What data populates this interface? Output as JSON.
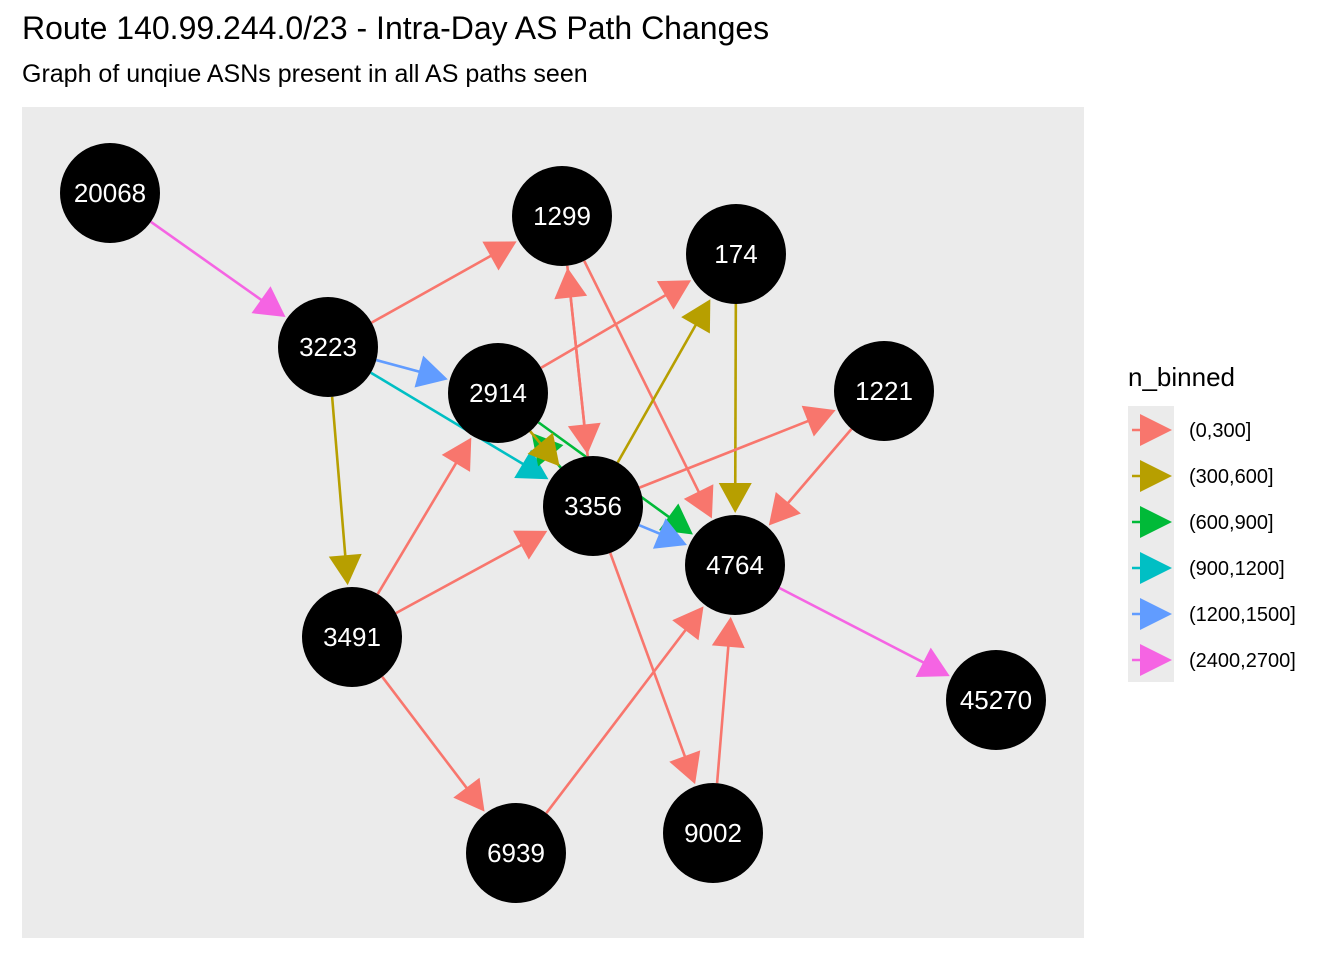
{
  "title": "Route 140.99.244.0/23 - Intra-Day AS Path Changes",
  "subtitle": "Graph of unqiue ASNs present in all AS paths seen",
  "legend": {
    "title": "n_binned",
    "bins": [
      {
        "label": "(0,300]",
        "color": "#F8766D"
      },
      {
        "label": "(300,600]",
        "color": "#B79F00"
      },
      {
        "label": "(600,900]",
        "color": "#00BA38"
      },
      {
        "label": "(900,1200]",
        "color": "#00BFC4"
      },
      {
        "label": "(1200,1500]",
        "color": "#619CFF"
      },
      {
        "label": "(2400,2700]",
        "color": "#F564E3"
      }
    ]
  },
  "nodes": [
    "20068",
    "1299",
    "174",
    "3223",
    "2914",
    "1221",
    "3356",
    "4764",
    "3491",
    "45270",
    "6939",
    "9002"
  ],
  "edges": [
    {
      "from": "20068",
      "to": "3223",
      "bin": 5
    },
    {
      "from": "3223",
      "to": "1299",
      "bin": 0
    },
    {
      "from": "3223",
      "to": "2914",
      "bin": 4
    },
    {
      "from": "3223",
      "to": "3356",
      "bin": 3
    },
    {
      "from": "3223",
      "to": "3491",
      "bin": 1
    },
    {
      "from": "2914",
      "to": "174",
      "bin": 0
    },
    {
      "from": "2914",
      "to": "4764",
      "bin": 2
    },
    {
      "from": "3356",
      "to": "2914",
      "bin": 2
    },
    {
      "from": "2914",
      "to": "3356",
      "bin": 1
    },
    {
      "from": "3356",
      "to": "1299",
      "bin": 0
    },
    {
      "from": "1299",
      "to": "3356",
      "bin": 0
    },
    {
      "from": "1299",
      "to": "4764",
      "bin": 0
    },
    {
      "from": "3356",
      "to": "174",
      "bin": 1
    },
    {
      "from": "174",
      "to": "4764",
      "bin": 1
    },
    {
      "from": "3356",
      "to": "1221",
      "bin": 0
    },
    {
      "from": "1221",
      "to": "4764",
      "bin": 0
    },
    {
      "from": "3356",
      "to": "4764",
      "bin": 4
    },
    {
      "from": "3356",
      "to": "9002",
      "bin": 0
    },
    {
      "from": "3491",
      "to": "2914",
      "bin": 0
    },
    {
      "from": "3491",
      "to": "3356",
      "bin": 0
    },
    {
      "from": "3491",
      "to": "6939",
      "bin": 0
    },
    {
      "from": "6939",
      "to": "4764",
      "bin": 0
    },
    {
      "from": "9002",
      "to": "4764",
      "bin": 0
    },
    {
      "from": "4764",
      "to": "45270",
      "bin": 5
    }
  ]
}
